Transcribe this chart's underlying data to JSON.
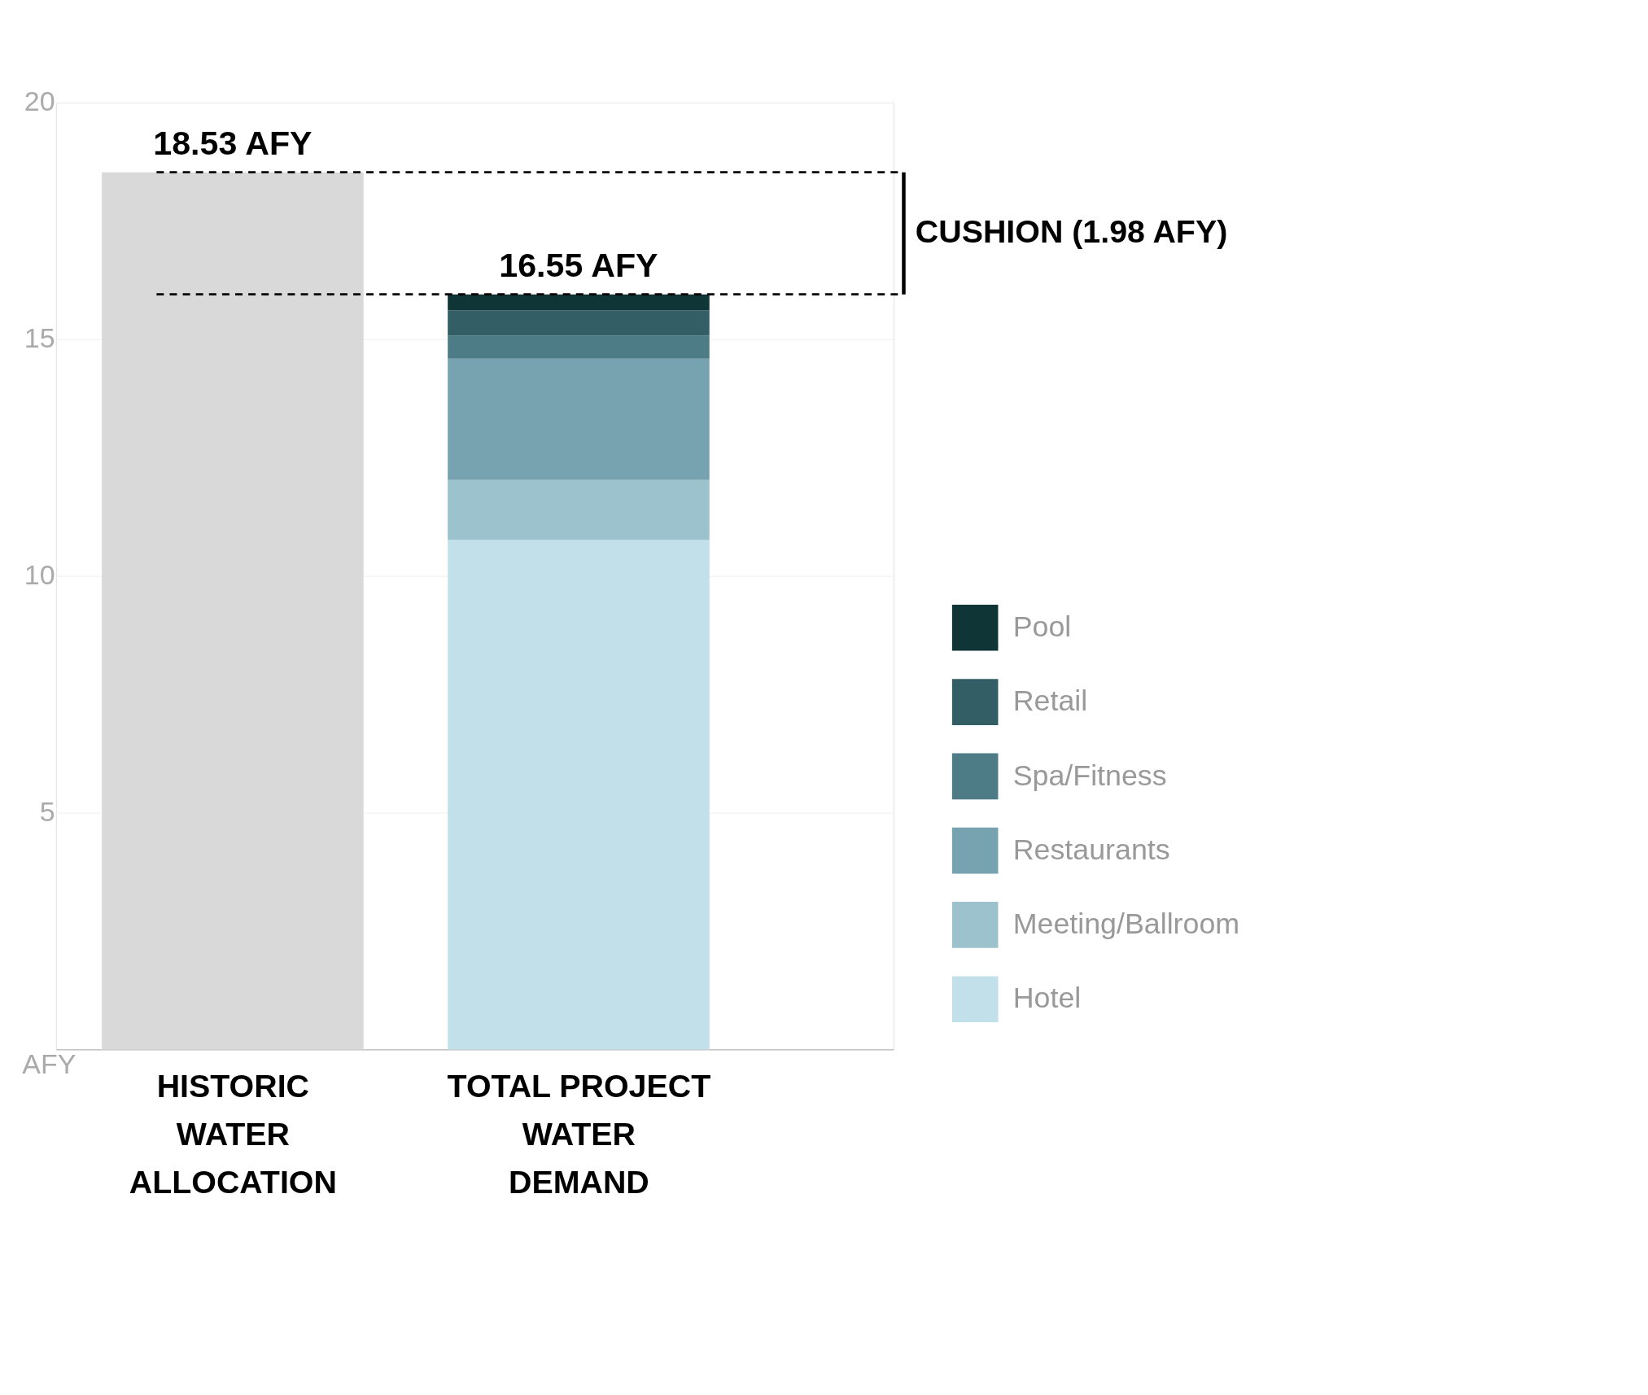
{
  "chart_data": {
    "type": "bar",
    "stacked": true,
    "categories": [
      "HISTORIC\nWATER\nALLOCATION",
      "TOTAL PROJECT\nWATER\nDEMAND"
    ],
    "series": [
      {
        "color": "#d9d9d9",
        "values": [
          18.53,
          null
        ]
      },
      {
        "name": "Hotel",
        "color": "#c2e0ea",
        "values": [
          null,
          10.76
        ]
      },
      {
        "name": "Meeting/Ballroom",
        "color": "#9cc3cd",
        "values": [
          null,
          1.27
        ]
      },
      {
        "name": "Restaurants",
        "color": "#77a3b0",
        "values": [
          null,
          2.56
        ]
      },
      {
        "name": "Spa/Fitness",
        "color": "#4e7c86",
        "values": [
          null,
          0.49
        ]
      },
      {
        "name": "Retail",
        "color": "#345e66",
        "values": [
          null,
          0.53
        ]
      },
      {
        "name": "Pool",
        "color": "#0f3536",
        "values": [
          null,
          0.34
        ]
      }
    ],
    "ylabel": "AFY",
    "ylim": [
      0,
      20
    ],
    "yticks": [
      5,
      10,
      15,
      20
    ],
    "grid": "y",
    "legend": "right",
    "totals": [
      "18.53 AFY",
      null
    ],
    "ref_lines": [
      {
        "axis": "y",
        "value": 18.53,
        "line_style": "dashed",
        "color": "#000000"
      },
      {
        "axis": "y",
        "value": 15.95,
        "line_style": "dashed",
        "color": "#000000"
      }
    ],
    "annotations": [
      "CUSHION (1.98 AFY)",
      "16.55 AFY"
    ]
  }
}
